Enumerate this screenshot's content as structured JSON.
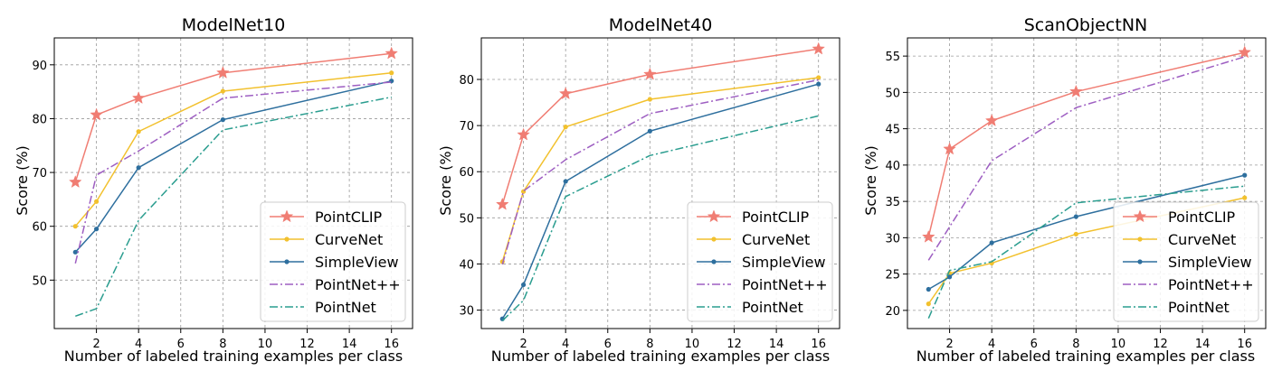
{
  "chart_data": [
    {
      "type": "line",
      "title": "ModelNet10",
      "xlabel": "Number of labeled training examples per class",
      "ylabel": "Score (%)",
      "x": [
        1,
        2,
        4,
        8,
        16
      ],
      "xlim": [
        0,
        17
      ],
      "ylim": [
        41,
        95
      ],
      "xticks": [
        2,
        4,
        6,
        8,
        10,
        12,
        14,
        16
      ],
      "yticks": [
        50,
        60,
        70,
        80,
        90
      ],
      "grid": true,
      "legend": "lower-right",
      "series": [
        {
          "name": "PointCLIP",
          "color": "#f07d73",
          "marker": "star",
          "dash": "solid",
          "values": [
            68.2,
            80.7,
            83.8,
            88.5,
            92.1
          ]
        },
        {
          "name": "CurveNet",
          "color": "#f2c12e",
          "marker": "dot",
          "dash": "solid",
          "values": [
            60.0,
            64.6,
            77.6,
            85.1,
            88.5
          ]
        },
        {
          "name": "SimpleView",
          "color": "#2e6f9e",
          "marker": "dot",
          "dash": "solid",
          "values": [
            55.2,
            59.5,
            70.9,
            79.8,
            87.0
          ]
        },
        {
          "name": "PointNet++",
          "color": "#9e5fc2",
          "marker": "none",
          "dash": "dashdot",
          "values": [
            53.1,
            69.5,
            74.0,
            83.8,
            86.8
          ]
        },
        {
          "name": "PointNet",
          "color": "#2a9d8f",
          "marker": "none",
          "dash": "dashdot",
          "values": [
            43.3,
            44.7,
            61.1,
            77.9,
            84.0
          ]
        }
      ]
    },
    {
      "type": "line",
      "title": "ModelNet40",
      "xlabel": "Number of labeled training examples per class",
      "ylabel": "Score (%)",
      "x": [
        1,
        2,
        4,
        8,
        16
      ],
      "xlim": [
        0,
        17
      ],
      "ylim": [
        26,
        89
      ],
      "xticks": [
        2,
        4,
        6,
        8,
        10,
        12,
        14,
        16
      ],
      "yticks": [
        30,
        40,
        50,
        60,
        70,
        80
      ],
      "grid": true,
      "legend": "lower-right",
      "series": [
        {
          "name": "PointCLIP",
          "color": "#f07d73",
          "marker": "star",
          "dash": "solid",
          "values": [
            52.9,
            68.0,
            76.9,
            81.1,
            86.6
          ]
        },
        {
          "name": "CurveNet",
          "color": "#f2c12e",
          "marker": "dot",
          "dash": "solid",
          "values": [
            40.5,
            55.7,
            69.7,
            75.7,
            80.4
          ]
        },
        {
          "name": "SimpleView",
          "color": "#2e6f9e",
          "marker": "dot",
          "dash": "solid",
          "values": [
            28.1,
            35.5,
            57.9,
            68.8,
            79.0
          ]
        },
        {
          "name": "PointNet++",
          "color": "#9e5fc2",
          "marker": "none",
          "dash": "dashdot",
          "values": [
            39.9,
            55.8,
            62.6,
            72.6,
            79.9
          ]
        },
        {
          "name": "PointNet",
          "color": "#2a9d8f",
          "marker": "none",
          "dash": "dashdot",
          "values": [
            27.7,
            32.1,
            54.6,
            63.5,
            72.1
          ]
        }
      ]
    },
    {
      "type": "line",
      "title": "ScanObjectNN",
      "xlabel": "Number of labeled training examples per class",
      "ylabel": "Score (%)",
      "x": [
        1,
        2,
        4,
        8,
        16
      ],
      "xlim": [
        0,
        17
      ],
      "ylim": [
        17.5,
        57.5
      ],
      "xticks": [
        2,
        4,
        6,
        8,
        10,
        12,
        14,
        16
      ],
      "yticks": [
        20,
        25,
        30,
        35,
        40,
        45,
        50,
        55
      ],
      "grid": true,
      "legend": "lower-right",
      "series": [
        {
          "name": "PointCLIP",
          "color": "#f07d73",
          "marker": "star",
          "dash": "solid",
          "values": [
            30.1,
            42.2,
            46.1,
            50.1,
            55.5
          ]
        },
        {
          "name": "CurveNet",
          "color": "#f2c12e",
          "marker": "dot",
          "dash": "solid",
          "values": [
            20.9,
            25.1,
            26.5,
            30.5,
            35.5
          ]
        },
        {
          "name": "SimpleView",
          "color": "#2e6f9e",
          "marker": "dot",
          "dash": "solid",
          "values": [
            22.9,
            24.6,
            29.3,
            32.9,
            38.6
          ]
        },
        {
          "name": "PointNet++",
          "color": "#9e5fc2",
          "marker": "none",
          "dash": "dashdot",
          "values": [
            26.9,
            31.5,
            40.6,
            47.9,
            54.9
          ]
        },
        {
          "name": "PointNet",
          "color": "#2a9d8f",
          "marker": "none",
          "dash": "dashdot",
          "values": [
            18.9,
            25.5,
            26.7,
            34.8,
            37.1
          ]
        }
      ]
    }
  ]
}
